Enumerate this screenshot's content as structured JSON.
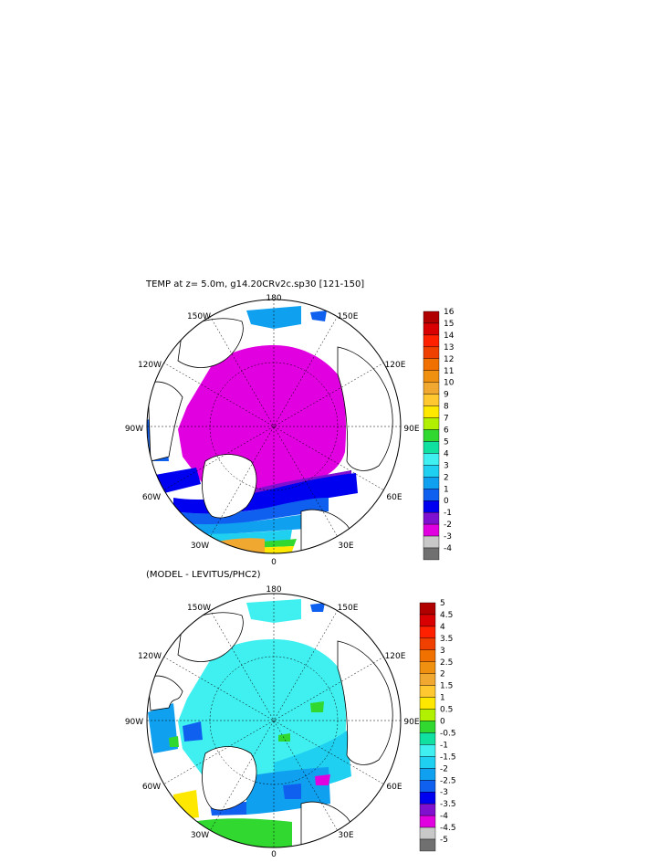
{
  "panels": [
    {
      "title": "TEMP at z=    5.0m, g14.20CRv2c.sp30 [121-150]",
      "lon_labels": {
        "top": "180",
        "top_left": "150W",
        "top_right": "150E",
        "upper_left": "120W",
        "upper_right": "120E",
        "left": "90W",
        "right": "90E",
        "lower_left": "60W",
        "lower_right": "60E",
        "bottom_left": "30W",
        "bottom_right": "30E",
        "bottom": "0"
      },
      "colorbar": {
        "labels": [
          "16",
          "15",
          "14",
          "13",
          "12",
          "11",
          "10",
          "9",
          "8",
          "7",
          "6",
          "5",
          "4",
          "3",
          "2",
          "1",
          "0",
          "-1",
          "-2",
          "-3",
          "-4"
        ],
        "colors": [
          "#b00000",
          "#d80000",
          "#ff2000",
          "#f04000",
          "#f07000",
          "#f09010",
          "#f0a830",
          "#ffc830",
          "#ffe800",
          "#b0f000",
          "#30d830",
          "#10e0a0",
          "#40f0f0",
          "#20d0f0",
          "#10a0f0",
          "#1060f0",
          "#0000f0",
          "#8010d0",
          "#e000e0",
          "#c8c8c8",
          "#707070"
        ]
      }
    },
    {
      "title": "(MODEL - LEVITUS/PHC2)",
      "lon_labels": {
        "top": "180",
        "top_left": "150W",
        "top_right": "150E",
        "upper_left": "120W",
        "upper_right": "120E",
        "left": "90W",
        "right": "90E",
        "lower_left": "60W",
        "lower_right": "60E",
        "bottom_left": "30W",
        "bottom_right": "30E",
        "bottom": "0"
      },
      "colorbar": {
        "labels": [
          "5",
          "4.5",
          "4",
          "3.5",
          "3",
          "2.5",
          "2",
          "1.5",
          "1",
          "0.5",
          "0",
          "-0.5",
          "-1",
          "-1.5",
          "-2",
          "-2.5",
          "-3",
          "-3.5",
          "-4",
          "-4.5",
          "-5"
        ],
        "colors": [
          "#b00000",
          "#d80000",
          "#ff2000",
          "#f04000",
          "#f07000",
          "#f09010",
          "#f0a830",
          "#ffc830",
          "#ffe800",
          "#b0f000",
          "#30d830",
          "#10e0a0",
          "#40f0f0",
          "#20d0f0",
          "#10a0f0",
          "#1060f0",
          "#0000f0",
          "#8010d0",
          "#e000e0",
          "#c8c8c8",
          "#707070"
        ]
      }
    }
  ]
}
